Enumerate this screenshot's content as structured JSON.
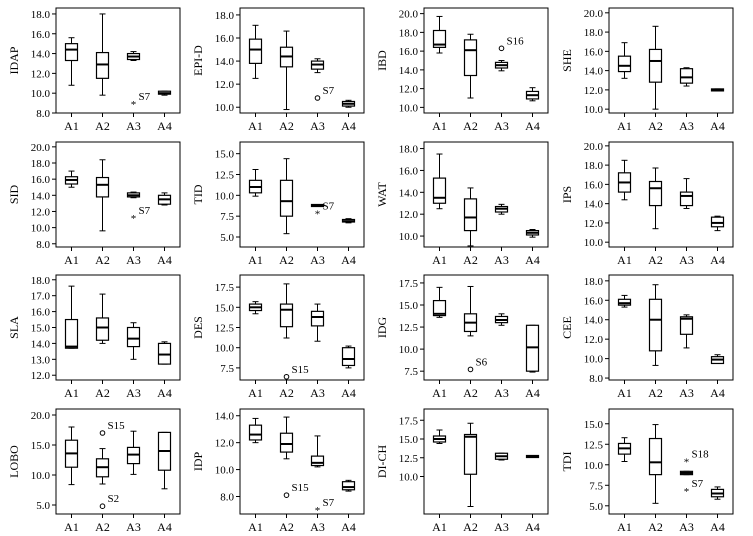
{
  "chart_data": [
    {
      "type": "boxplot",
      "ylabel": "IDAP",
      "categories": [
        "A1",
        "A2",
        "A3",
        "A4"
      ],
      "yticks": [
        "8.0",
        "10.0",
        "12.0",
        "14.0",
        "16.0",
        "18.0"
      ],
      "ylim": [
        8.0,
        18.6
      ],
      "boxes": [
        {
          "lo": 10.8,
          "q1": 13.3,
          "med": 14.4,
          "q3": 15.0,
          "hi": 15.6
        },
        {
          "lo": 9.8,
          "q1": 11.5,
          "med": 12.9,
          "q3": 14.1,
          "hi": 18.0
        },
        {
          "lo": 13.3,
          "q1": 13.4,
          "med": 13.7,
          "q3": 14.0,
          "hi": 14.2
        },
        {
          "lo": 9.8,
          "q1": 9.9,
          "med": 10.0,
          "q3": 10.2,
          "hi": 10.2
        }
      ],
      "outliers": [
        {
          "cat": 2,
          "y": 8.9,
          "sym": "*",
          "label": "S7"
        }
      ]
    },
    {
      "type": "boxplot",
      "ylabel": "EPI-D",
      "categories": [
        "A1",
        "A2",
        "A3",
        "A4"
      ],
      "yticks": [
        "10.0",
        "12.0",
        "14.0",
        "16.0",
        "18.0"
      ],
      "ylim": [
        9.5,
        18.6
      ],
      "boxes": [
        {
          "lo": 12.5,
          "q1": 13.8,
          "med": 15.0,
          "q3": 15.9,
          "hi": 17.1
        },
        {
          "lo": 9.8,
          "q1": 13.5,
          "med": 14.4,
          "q3": 15.2,
          "hi": 16.6
        },
        {
          "lo": 13.0,
          "q1": 13.3,
          "med": 13.7,
          "q3": 14.0,
          "hi": 14.2
        },
        {
          "lo": 10.0,
          "q1": 10.1,
          "med": 10.3,
          "q3": 10.5,
          "hi": 10.6
        }
      ],
      "outliers": [
        {
          "cat": 2,
          "y": 10.8,
          "sym": "o",
          "label": "S7"
        }
      ]
    },
    {
      "type": "boxplot",
      "ylabel": "IBD",
      "categories": [
        "A1",
        "A2",
        "A3",
        "A4"
      ],
      "yticks": [
        "10.0",
        "12.0",
        "14.0",
        "16.0",
        "18.0",
        "20.0"
      ],
      "ylim": [
        9.4,
        20.6
      ],
      "boxes": [
        {
          "lo": 15.8,
          "q1": 16.4,
          "med": 16.7,
          "q3": 18.2,
          "hi": 19.7
        },
        {
          "lo": 11.0,
          "q1": 13.4,
          "med": 16.1,
          "q3": 17.2,
          "hi": 17.8
        },
        {
          "lo": 13.9,
          "q1": 14.2,
          "med": 14.5,
          "q3": 14.8,
          "hi": 15.0
        },
        {
          "lo": 10.7,
          "q1": 10.9,
          "med": 11.3,
          "q3": 11.7,
          "hi": 12.1
        }
      ],
      "outliers": [
        {
          "cat": 2,
          "y": 16.3,
          "sym": "o",
          "label": "S16"
        }
      ]
    },
    {
      "type": "boxplot",
      "ylabel": "SHE",
      "categories": [
        "A1",
        "A2",
        "A3",
        "A4"
      ],
      "yticks": [
        "10.0",
        "12.0",
        "14.0",
        "16.0",
        "18.0",
        "20.0"
      ],
      "ylim": [
        9.6,
        20.5
      ],
      "boxes": [
        {
          "lo": 13.2,
          "q1": 13.9,
          "med": 14.5,
          "q3": 15.5,
          "hi": 16.9
        },
        {
          "lo": 10.0,
          "q1": 12.8,
          "med": 15.0,
          "q3": 16.2,
          "hi": 18.6
        },
        {
          "lo": 12.4,
          "q1": 12.7,
          "med": 13.3,
          "q3": 14.2,
          "hi": 14.3
        },
        {
          "lo": 12.0,
          "q1": 12.0,
          "med": 12.0,
          "q3": 12.1,
          "hi": 12.1
        }
      ],
      "outliers": []
    },
    {
      "type": "boxplot",
      "ylabel": "SID",
      "categories": [
        "A1",
        "A2",
        "A3",
        "A4"
      ],
      "yticks": [
        "8.0",
        "10.0",
        "12.0",
        "14.0",
        "16.0",
        "18.0",
        "20.0"
      ],
      "ylim": [
        7.6,
        20.6
      ],
      "boxes": [
        {
          "lo": 15.0,
          "q1": 15.4,
          "med": 15.9,
          "q3": 16.3,
          "hi": 17.0
        },
        {
          "lo": 9.6,
          "q1": 13.8,
          "med": 15.3,
          "q3": 16.2,
          "hi": 18.4
        },
        {
          "lo": 13.7,
          "q1": 13.8,
          "med": 14.0,
          "q3": 14.3,
          "hi": 14.4
        },
        {
          "lo": 12.8,
          "q1": 12.9,
          "med": 13.5,
          "q3": 14.0,
          "hi": 14.3
        }
      ],
      "outliers": [
        {
          "cat": 2,
          "y": 11.2,
          "sym": "*",
          "label": "S7"
        }
      ]
    },
    {
      "type": "boxplot",
      "ylabel": "TID",
      "categories": [
        "A1",
        "A2",
        "A3",
        "A4"
      ],
      "yticks": [
        "5.0",
        "7.5",
        "10.0",
        "12.5",
        "15.0"
      ],
      "ylim": [
        3.8,
        16.4
      ],
      "boxes": [
        {
          "lo": 9.9,
          "q1": 10.3,
          "med": 11.0,
          "q3": 11.8,
          "hi": 13.1
        },
        {
          "lo": 5.4,
          "q1": 7.5,
          "med": 9.3,
          "q3": 11.8,
          "hi": 14.4
        },
        {
          "lo": 8.8,
          "q1": 8.8,
          "med": 8.8,
          "q3": 8.9,
          "hi": 8.9
        },
        {
          "lo": 6.7,
          "q1": 6.8,
          "med": 6.9,
          "q3": 7.1,
          "hi": 7.2
        }
      ],
      "outliers": [
        {
          "cat": 2,
          "y": 7.8,
          "sym": "*",
          "label": "S7"
        }
      ]
    },
    {
      "type": "boxplot",
      "ylabel": "WAT",
      "categories": [
        "A1",
        "A2",
        "A3",
        "A4"
      ],
      "yticks": [
        "10.0",
        "12.0",
        "14.0",
        "16.0",
        "18.0"
      ],
      "ylim": [
        9.0,
        18.6
      ],
      "boxes": [
        {
          "lo": 12.5,
          "q1": 13.0,
          "med": 13.5,
          "q3": 15.3,
          "hi": 17.5
        },
        {
          "lo": 9.1,
          "q1": 10.5,
          "med": 11.7,
          "q3": 13.4,
          "hi": 14.4
        },
        {
          "lo": 12.0,
          "q1": 12.2,
          "med": 12.5,
          "q3": 12.7,
          "hi": 12.9
        },
        {
          "lo": 9.9,
          "q1": 10.1,
          "med": 10.3,
          "q3": 10.5,
          "hi": 10.6
        }
      ],
      "outliers": []
    },
    {
      "type": "boxplot",
      "ylabel": "IPS",
      "categories": [
        "A1",
        "A2",
        "A3",
        "A4"
      ],
      "yticks": [
        "10.0",
        "12.0",
        "14.0",
        "16.0",
        "18.0",
        "20.0"
      ],
      "ylim": [
        9.5,
        20.4
      ],
      "boxes": [
        {
          "lo": 14.4,
          "q1": 15.2,
          "med": 16.2,
          "q3": 17.2,
          "hi": 18.5
        },
        {
          "lo": 11.4,
          "q1": 13.8,
          "med": 15.6,
          "q3": 16.3,
          "hi": 17.7
        },
        {
          "lo": 13.5,
          "q1": 13.8,
          "med": 14.8,
          "q3": 15.2,
          "hi": 16.6
        },
        {
          "lo": 11.2,
          "q1": 11.6,
          "med": 12.0,
          "q3": 12.6,
          "hi": 12.7
        }
      ],
      "outliers": []
    },
    {
      "type": "boxplot",
      "ylabel": "SLA",
      "categories": [
        "A1",
        "A2",
        "A3",
        "A4"
      ],
      "yticks": [
        "12.0",
        "13.0",
        "14.0",
        "15.0",
        "16.0",
        "17.0",
        "18.0"
      ],
      "ylim": [
        11.7,
        18.3
      ],
      "boxes": [
        {
          "lo": 13.7,
          "q1": 13.7,
          "med": 13.8,
          "q3": 15.5,
          "hi": 17.6
        },
        {
          "lo": 14.0,
          "q1": 14.2,
          "med": 15.0,
          "q3": 15.6,
          "hi": 17.1
        },
        {
          "lo": 13.0,
          "q1": 13.8,
          "med": 14.3,
          "q3": 15.0,
          "hi": 15.3
        },
        {
          "lo": 12.7,
          "q1": 12.7,
          "med": 13.3,
          "q3": 14.0,
          "hi": 14.1
        }
      ],
      "outliers": []
    },
    {
      "type": "boxplot",
      "ylabel": "DES",
      "categories": [
        "A1",
        "A2",
        "A3",
        "A4"
      ],
      "yticks": [
        "7.5",
        "10.0",
        "12.5",
        "15.0",
        "17.5"
      ],
      "ylim": [
        6.0,
        19.0
      ],
      "boxes": [
        {
          "lo": 14.2,
          "q1": 14.6,
          "med": 15.0,
          "q3": 15.4,
          "hi": 15.7
        },
        {
          "lo": 11.2,
          "q1": 12.6,
          "med": 14.7,
          "q3": 15.4,
          "hi": 17.9
        },
        {
          "lo": 10.8,
          "q1": 12.7,
          "med": 13.8,
          "q3": 14.5,
          "hi": 15.4
        },
        {
          "lo": 7.5,
          "q1": 7.8,
          "med": 8.6,
          "q3": 10.0,
          "hi": 10.2
        }
      ],
      "outliers": [
        {
          "cat": 1,
          "y": 6.4,
          "sym": "o",
          "label": "S15"
        }
      ]
    },
    {
      "type": "boxplot",
      "ylabel": "IDG",
      "categories": [
        "A1",
        "A2",
        "A3",
        "A4"
      ],
      "yticks": [
        "7.5",
        "10.0",
        "12.5",
        "15.0",
        "17.5"
      ],
      "ylim": [
        6.5,
        18.4
      ],
      "boxes": [
        {
          "lo": 13.6,
          "q1": 13.8,
          "med": 14.0,
          "q3": 15.5,
          "hi": 17.0
        },
        {
          "lo": 11.5,
          "q1": 12.0,
          "med": 13.0,
          "q3": 14.0,
          "hi": 17.1
        },
        {
          "lo": 12.7,
          "q1": 13.0,
          "med": 13.3,
          "q3": 13.7,
          "hi": 14.0
        },
        {
          "lo": 7.4,
          "q1": 7.5,
          "med": 10.2,
          "q3": 12.7,
          "hi": 12.7
        }
      ],
      "outliers": [
        {
          "cat": 1,
          "y": 7.7,
          "sym": "o",
          "label": "S6"
        }
      ]
    },
    {
      "type": "boxplot",
      "ylabel": "CEE",
      "categories": [
        "A1",
        "A2",
        "A3",
        "A4"
      ],
      "yticks": [
        "8.0",
        "10.0",
        "12.0",
        "14.0",
        "16.0",
        "18.0"
      ],
      "ylim": [
        7.8,
        18.6
      ],
      "boxes": [
        {
          "lo": 15.3,
          "q1": 15.5,
          "med": 15.7,
          "q3": 16.1,
          "hi": 16.5
        },
        {
          "lo": 9.3,
          "q1": 10.8,
          "med": 14.0,
          "q3": 16.1,
          "hi": 17.6
        },
        {
          "lo": 11.1,
          "q1": 12.5,
          "med": 14.1,
          "q3": 14.3,
          "hi": 14.5
        },
        {
          "lo": 9.5,
          "q1": 9.5,
          "med": 9.9,
          "q3": 10.2,
          "hi": 10.4
        }
      ],
      "outliers": []
    },
    {
      "type": "boxplot",
      "ylabel": "LOBO",
      "categories": [
        "A1",
        "A2",
        "A3",
        "A4"
      ],
      "yticks": [
        "5.0",
        "10.0",
        "15.0",
        "20.0"
      ],
      "ylim": [
        3.5,
        21.0
      ],
      "boxes": [
        {
          "lo": 8.4,
          "q1": 11.3,
          "med": 13.6,
          "q3": 15.8,
          "hi": 18.0
        },
        {
          "lo": 8.5,
          "q1": 9.7,
          "med": 11.3,
          "q3": 12.7,
          "hi": 14.4
        },
        {
          "lo": 10.1,
          "q1": 11.9,
          "med": 13.4,
          "q3": 14.6,
          "hi": 17.3
        },
        {
          "lo": 7.7,
          "q1": 10.8,
          "med": 14.0,
          "q3": 17.1,
          "hi": 17.1
        }
      ],
      "outliers": [
        {
          "cat": 1,
          "y": 17.0,
          "sym": "o",
          "label": "S15"
        },
        {
          "cat": 1,
          "y": 4.8,
          "sym": "o",
          "label": "S2"
        }
      ]
    },
    {
      "type": "boxplot",
      "ylabel": "IDP",
      "categories": [
        "A1",
        "A2",
        "A3",
        "A4"
      ],
      "yticks": [
        "8.0",
        "10.0",
        "12.0",
        "14.0"
      ],
      "ylim": [
        6.7,
        14.5
      ],
      "boxes": [
        {
          "lo": 12.0,
          "q1": 12.2,
          "med": 12.6,
          "q3": 13.3,
          "hi": 13.8
        },
        {
          "lo": 10.8,
          "q1": 11.3,
          "med": 11.9,
          "q3": 12.7,
          "hi": 13.9
        },
        {
          "lo": 10.2,
          "q1": 10.3,
          "med": 10.5,
          "q3": 11.0,
          "hi": 12.5
        },
        {
          "lo": 8.4,
          "q1": 8.5,
          "med": 8.7,
          "q3": 9.1,
          "hi": 9.2
        }
      ],
      "outliers": [
        {
          "cat": 1,
          "y": 8.1,
          "sym": "o",
          "label": "S15"
        },
        {
          "cat": 2,
          "y": 7.0,
          "sym": "*",
          "label": "S7"
        }
      ]
    },
    {
      "type": "boxplot",
      "ylabel": "DI-CH",
      "categories": [
        "A1",
        "A2",
        "A3",
        "A4"
      ],
      "yticks": [
        "10.0",
        "12.5",
        "15.0",
        "17.5"
      ],
      "ylim": [
        5.0,
        19.0
      ],
      "boxes": [
        {
          "lo": 14.4,
          "q1": 14.6,
          "med": 15.0,
          "q3": 15.4,
          "hi": 16.2
        },
        {
          "lo": 6.0,
          "q1": 10.3,
          "med": 15.3,
          "q3": 15.6,
          "hi": 17.1
        },
        {
          "lo": 12.2,
          "q1": 12.3,
          "med": 12.7,
          "q3": 13.1,
          "hi": 13.1
        },
        {
          "lo": 12.6,
          "q1": 12.6,
          "med": 12.7,
          "q3": 12.8,
          "hi": 12.8
        }
      ],
      "outliers": []
    },
    {
      "type": "boxplot",
      "ylabel": "TDI",
      "categories": [
        "A1",
        "A2",
        "A3",
        "A4"
      ],
      "yticks": [
        "5.0",
        "7.5",
        "10.0",
        "12.5",
        "15.0"
      ],
      "ylim": [
        4.0,
        16.8
      ],
      "boxes": [
        {
          "lo": 10.4,
          "q1": 11.3,
          "med": 12.0,
          "q3": 12.6,
          "hi": 13.3
        },
        {
          "lo": 5.3,
          "q1": 8.8,
          "med": 10.3,
          "q3": 13.2,
          "hi": 14.9
        },
        {
          "lo": 8.8,
          "q1": 8.8,
          "med": 9.0,
          "q3": 9.2,
          "hi": 9.2
        },
        {
          "lo": 5.8,
          "q1": 6.1,
          "med": 6.5,
          "q3": 7.0,
          "hi": 7.3
        }
      ],
      "outliers": [
        {
          "cat": 2,
          "y": 10.4,
          "sym": "*",
          "label": "S18"
        },
        {
          "cat": 2,
          "y": 6.8,
          "sym": "*",
          "label": "S7"
        }
      ]
    }
  ]
}
